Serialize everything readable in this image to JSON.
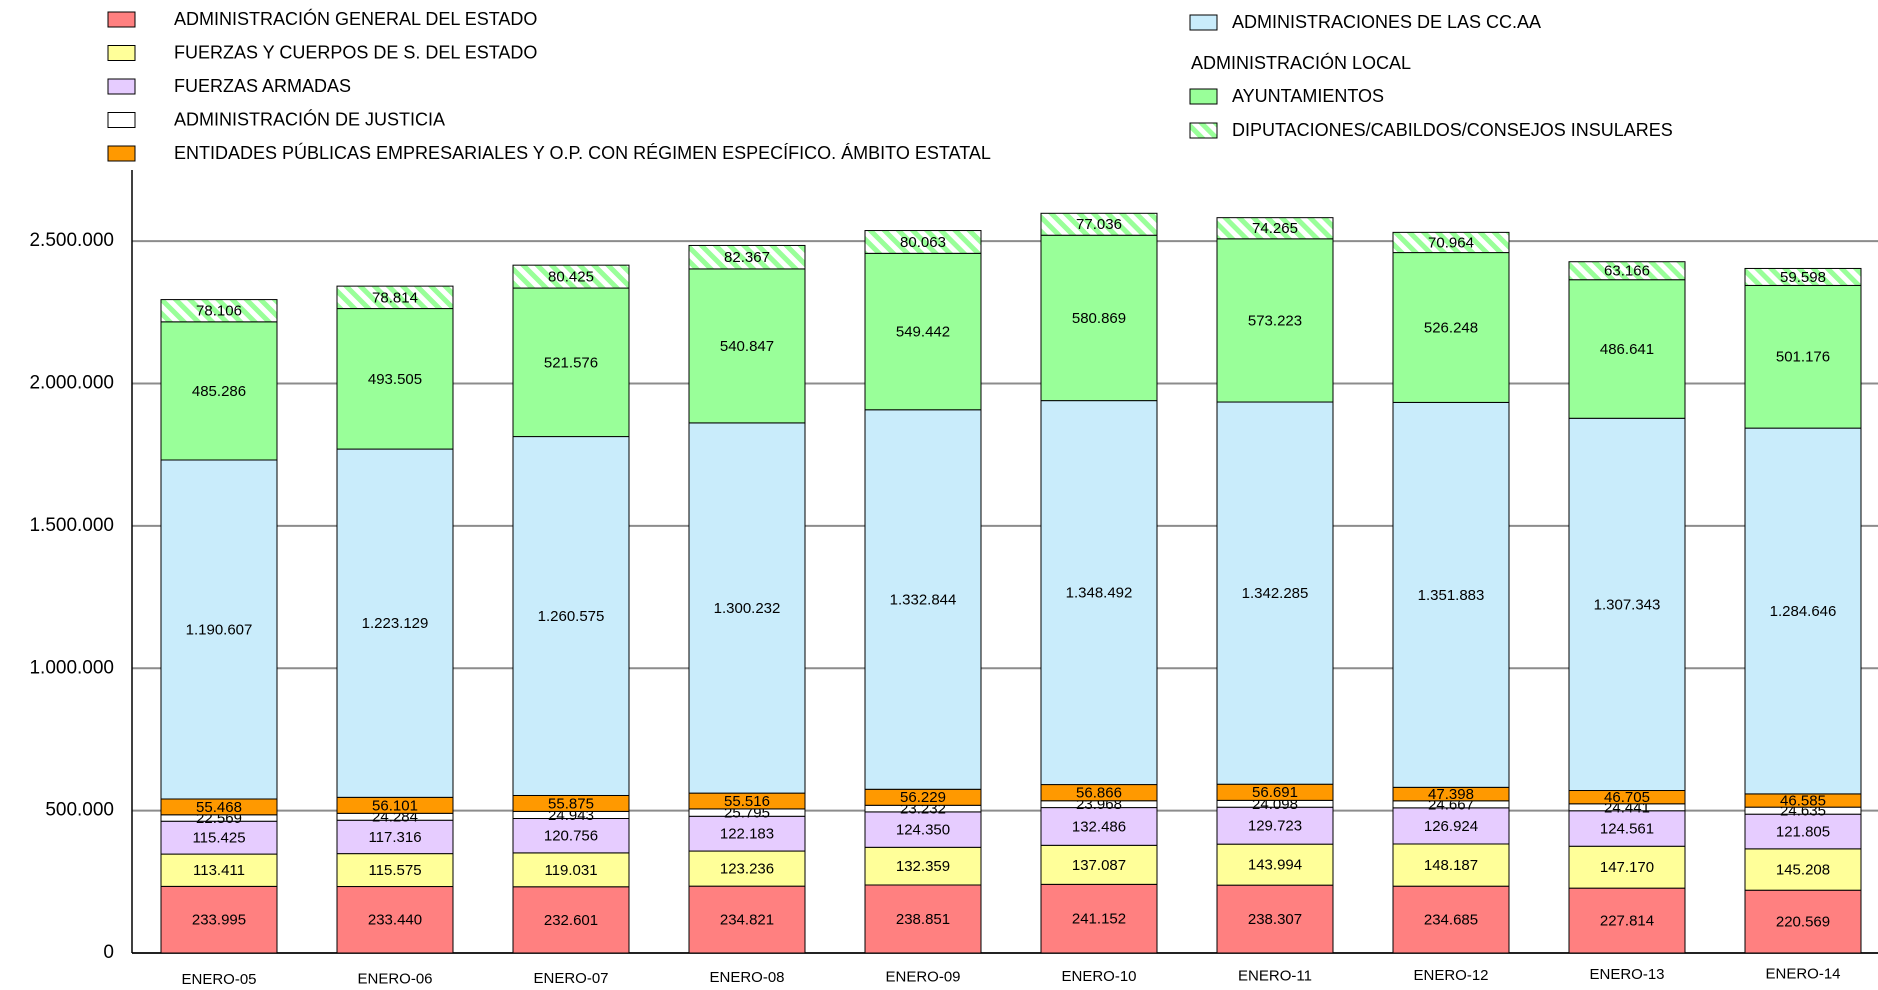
{
  "chart_data": {
    "type": "stacked_bar",
    "legend_group_label": "ADMINISTRACIÓN LOCAL",
    "categories": [
      "ENERO-05",
      "ENERO-06",
      "ENERO-07",
      "ENERO-08",
      "ENERO-09",
      "ENERO-10",
      "ENERO-11",
      "ENERO-12",
      "ENERO-13",
      "ENERO-14"
    ],
    "ylim": [
      0,
      2750000
    ],
    "yticks": [
      0,
      {
        "value": 500000,
        "label": "500.000"
      },
      {
        "value": 1000000,
        "label": "1.000.000"
      },
      {
        "value": 1500000,
        "label": "1.500.000"
      },
      {
        "value": 2000000,
        "label": "2.000.000"
      },
      {
        "value": 2500000,
        "label": "2.500.000"
      }
    ],
    "grid": true,
    "series": [
      {
        "name": "ADMINISTRACIÓN GENERAL DEL ESTADO",
        "color": "#ff8080",
        "values": [
          233995,
          233440,
          232601,
          234821,
          238851,
          241152,
          238307,
          234685,
          227814,
          220569
        ],
        "value_labels": [
          "233.995",
          "233.440",
          "232.601",
          "234.821",
          "238.851",
          "241.152",
          "238.307",
          "234.685",
          "227.814",
          "220.569"
        ]
      },
      {
        "name": "FUERZAS Y CUERPOS DE S. DEL ESTADO",
        "color": "#ffff99",
        "values": [
          113411,
          115575,
          119031,
          123236,
          132359,
          137087,
          143994,
          148187,
          147170,
          145208
        ],
        "value_labels": [
          "113.411",
          "115.575",
          "119.031",
          "123.236",
          "132.359",
          "137.087",
          "143.994",
          "148.187",
          "147.170",
          "145.208"
        ]
      },
      {
        "name": "FUERZAS ARMADAS",
        "color": "#e6ccff",
        "values": [
          115425,
          117316,
          120756,
          122183,
          124350,
          132486,
          129723,
          126924,
          124561,
          121805
        ],
        "value_labels": [
          "115.425",
          "117.316",
          "120.756",
          "122.183",
          "124.350",
          "132.486",
          "129.723",
          "126.924",
          "124.561",
          "121.805"
        ]
      },
      {
        "name": "ADMINISTRACIÓN DE JUSTICIA",
        "color": "#ffffff",
        "values": [
          22569,
          24284,
          24943,
          25795,
          23232,
          23968,
          24098,
          24667,
          24441,
          24635
        ],
        "value_labels": [
          "22.569",
          "24.284",
          "24.943",
          "25.795",
          "23.232",
          "23.968",
          "24.098",
          "24.667",
          "24.441",
          "24.635"
        ]
      },
      {
        "name": "ENTIDADES PÚBLICAS EMPRESARIALES Y O.P. CON RÉGIMEN ESPECÍFICO. ÁMBITO ESTATAL",
        "color": "#ff9900",
        "values": [
          55468,
          56101,
          55875,
          55516,
          56229,
          56866,
          56691,
          47398,
          46705,
          46585
        ],
        "value_labels": [
          "55.468",
          "56.101",
          "55.875",
          "55.516",
          "56.229",
          "56.866",
          "56.691",
          "47.398",
          "46.705",
          "46.585"
        ]
      },
      {
        "name": "ADMINISTRACIONES DE LAS CC.AA",
        "color": "#c9ecfb",
        "values": [
          1190607,
          1223129,
          1260575,
          1300232,
          1332844,
          1348492,
          1342285,
          1351883,
          1307343,
          1284646
        ],
        "value_labels": [
          "1.190.607",
          "1.223.129",
          "1.260.575",
          "1.300.232",
          "1.332.844",
          "1.348.492",
          "1.342.285",
          "1.351.883",
          "1.307.343",
          "1.284.646"
        ]
      },
      {
        "name": "AYUNTAMIENTOS",
        "color": "#99ff99",
        "values": [
          485286,
          493505,
          521576,
          540847,
          549442,
          580869,
          573223,
          526248,
          486641,
          501176
        ],
        "value_labels": [
          "485.286",
          "493.505",
          "521.576",
          "540.847",
          "549.442",
          "580.869",
          "573.223",
          "526.248",
          "486.641",
          "501.176"
        ]
      },
      {
        "name": "DIPUTACIONES/CABILDOS/CONSEJOS INSULARES",
        "color": "#99ff99",
        "hatch": true,
        "values": [
          78106,
          78814,
          80425,
          82367,
          80063,
          77036,
          74265,
          70964,
          63166,
          59598
        ],
        "value_labels": [
          "78.106",
          "78.814",
          "80.425",
          "82.367",
          "80.063",
          "77.036",
          "74.265",
          "70.964",
          "63.166",
          "59.598"
        ]
      }
    ]
  }
}
